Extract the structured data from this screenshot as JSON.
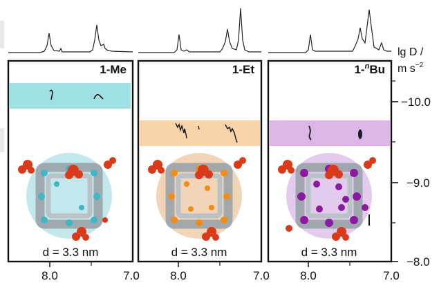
{
  "figure": {
    "panels": [
      {
        "id": "me",
        "label": "1-Me",
        "distance_text": "d = 3.3 nm",
        "band_color": "#9fe0e3",
        "accent_color": "#3fb7c4",
        "sphere_color": "#8fd6da",
        "band_logD": -10.0,
        "x_axis_ticks": [
          "8.0",
          "7.0"
        ]
      },
      {
        "id": "et",
        "label": "1-Et",
        "distance_text": "d = 3.3 nm",
        "band_color": "#f8d4a8",
        "accent_color": "#f08c1a",
        "sphere_color": "#e8b07a",
        "band_logD": -9.6,
        "x_axis_ticks": [
          "8.0",
          "7.0"
        ]
      },
      {
        "id": "nbu",
        "label_prefix": "1-",
        "label_super": "n",
        "label_suffix": "Bu",
        "distance_text": "d = 3.3 nm",
        "band_color": "#dcb6e6",
        "accent_color": "#8a1aa0",
        "sphere_color": "#caa0dc",
        "band_logD": -9.6,
        "x_axis_ticks": [
          "8.0",
          "7.0"
        ]
      }
    ],
    "y_axis": {
      "title_line1": "lg D /",
      "title_line2_prefix": "m s",
      "title_line2_super": "−2",
      "ticks": [
        "−10.0",
        "−9.0",
        "−8.0"
      ]
    },
    "x_axis_edge_label": "7.0",
    "chart_data": {
      "type": "scatter",
      "title": "",
      "xlabel": "",
      "ylabel": "lg D / m s−2",
      "x_reversed": true,
      "xlim": [
        8.5,
        7.0
      ],
      "ylim": [
        -10.4,
        -8.0
      ],
      "series": [
        {
          "name": "1-Me",
          "points": [
            [
              8.0,
              -10.0
            ],
            [
              7.5,
              -10.0
            ]
          ]
        },
        {
          "name": "1-Et",
          "points": [
            [
              8.0,
              -9.6
            ],
            [
              7.8,
              -9.6
            ],
            [
              7.4,
              -9.6
            ]
          ]
        },
        {
          "name": "1-nBu",
          "points": [
            [
              8.0,
              -9.6
            ],
            [
              7.4,
              -9.6
            ]
          ]
        }
      ]
    }
  }
}
